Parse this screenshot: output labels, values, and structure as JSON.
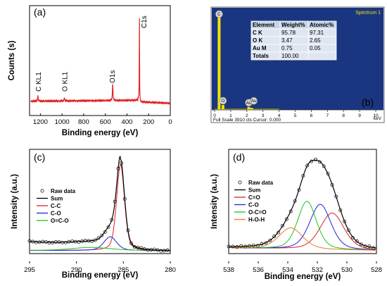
{
  "chart_data": [
    {
      "panel": "(a)",
      "type": "line",
      "xlabel": "Binding energy (eV)",
      "ylabel": "Counts (s)",
      "xlim": [
        1300,
        0
      ],
      "x_reversed": true,
      "xticks": [
        1200,
        1000,
        800,
        600,
        400,
        200,
        0
      ],
      "series_color": "#e02020",
      "peaks": [
        {
          "label": "C KL1",
          "x": 1223,
          "height": 0.07
        },
        {
          "label": "O KL1",
          "x": 978,
          "height": 0.04
        },
        {
          "label": "O1s",
          "x": 532,
          "height": 0.2
        },
        {
          "label": "C1s",
          "x": 284.8,
          "height": 1.0
        }
      ]
    },
    {
      "panel": "(b)",
      "type": "table",
      "title": "Spectrum 1",
      "xlabel": "keV",
      "xlim": [
        0,
        10
      ],
      "xticks": [
        0,
        1,
        2,
        3,
        4,
        5,
        6,
        7,
        8,
        9,
        10
      ],
      "footer": "Full Scale 3910 cts Cursor: 0.000",
      "background": "#1a3680",
      "bar_color": "#f2e300",
      "peaks": [
        {
          "label": "C",
          "x": 0.28,
          "height": 1.0
        },
        {
          "label": "O",
          "x": 0.52,
          "height": 0.05
        },
        {
          "label": "Au",
          "x": 2.12,
          "height": 0.03
        },
        {
          "label": "Au",
          "x": 2.3,
          "height": 0.02
        }
      ],
      "table": {
        "headers": [
          "Element",
          "Weight%",
          "Atomic%"
        ],
        "rows": [
          [
            "C K",
            "95.78",
            "97.31"
          ],
          [
            "O K",
            "3.47",
            "2.65"
          ],
          [
            "Au M",
            "0.75",
            "0.05"
          ],
          [
            "Totals",
            "100.00",
            ""
          ]
        ]
      }
    },
    {
      "panel": "(c)",
      "type": "line",
      "xlabel": "Binding energy (eV)",
      "ylabel": "Intensity (a.u.)",
      "xlim": [
        295,
        280
      ],
      "x_reversed": true,
      "xticks": [
        295,
        290,
        285,
        280
      ],
      "legend": [
        "Raw data",
        "Sum",
        "C-C",
        "C-O",
        "O=C-O"
      ],
      "legend_placement": "left",
      "components": [
        {
          "name": "C-C",
          "center": 285.3,
          "fwhm": 1.0,
          "amp": 1.0,
          "color": "#e02020"
        },
        {
          "name": "C-O",
          "center": 286.4,
          "fwhm": 1.6,
          "amp": 0.16,
          "color": "#2020e0"
        },
        {
          "name": "O=C-O",
          "center": 288.5,
          "fwhm": 5.0,
          "amp": 0.035,
          "color": "#20c020"
        }
      ],
      "baseline": {
        "high_side": 0.12,
        "low_side": 0.03
      }
    },
    {
      "panel": "(d)",
      "type": "line",
      "xlabel": "Binding energy (eV)",
      "ylabel": "Intensity (a.u.)",
      "xlim": [
        538,
        528
      ],
      "x_reversed": true,
      "xticks": [
        538,
        536,
        534,
        532,
        530,
        528
      ],
      "legend": [
        "Raw data",
        "Sum",
        "C=O",
        "C-O",
        "O-C=O",
        "H-O-H"
      ],
      "legend_placement": "left",
      "components": [
        {
          "name": "C=O",
          "center": 531.0,
          "fwhm": 1.9,
          "amp": 0.52,
          "color": "#e02020"
        },
        {
          "name": "C-O",
          "center": 531.8,
          "fwhm": 1.7,
          "amp": 0.64,
          "color": "#2020e0"
        },
        {
          "name": "O-C=O",
          "center": 532.7,
          "fwhm": 1.5,
          "amp": 0.68,
          "color": "#20c020"
        },
        {
          "name": "H-O-H",
          "center": 533.8,
          "fwhm": 1.9,
          "amp": 0.3,
          "color": "#f07820"
        }
      ],
      "baseline": {
        "high_side": 0.05,
        "low_side": 0.02
      }
    }
  ]
}
